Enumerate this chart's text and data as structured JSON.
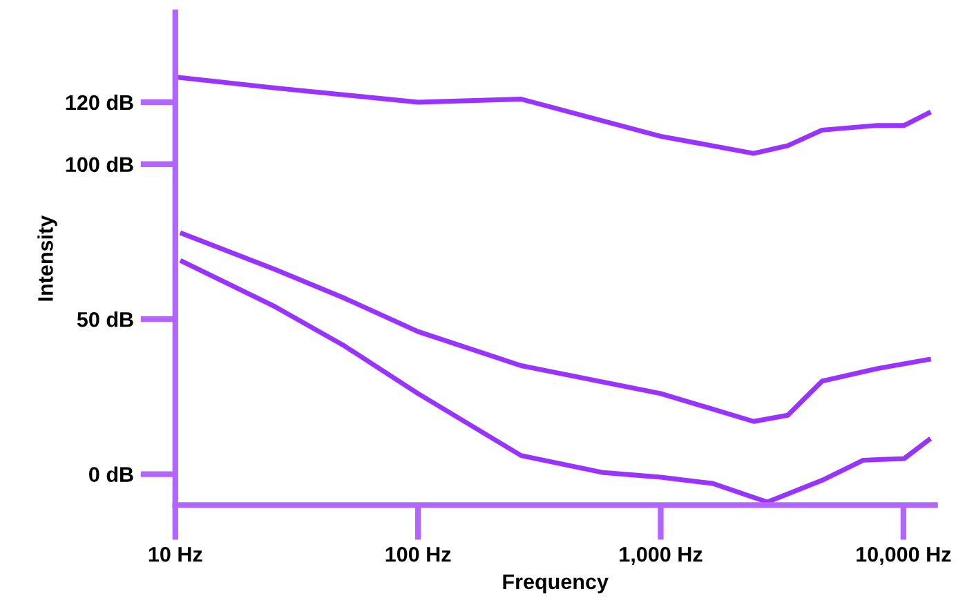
{
  "chart_data": {
    "type": "line",
    "xlabel": "Frequency",
    "ylabel": "Intensity",
    "log": "x",
    "grid": false,
    "legend": false,
    "marker": "none",
    "line_style": "solid",
    "xlim": [
      10,
      13500
    ],
    "ylim": [
      -10,
      149
    ],
    "xticks": [
      {
        "value": 10,
        "label": "10 Hz"
      },
      {
        "value": 100,
        "label": "100 Hz"
      },
      {
        "value": 1000,
        "label": "1,000 Hz"
      },
      {
        "value": 10000,
        "label": "10,000 Hz"
      }
    ],
    "yticks": [
      {
        "value": 0,
        "label": "0 dB"
      },
      {
        "value": 50,
        "label": "50 dB"
      },
      {
        "value": 100,
        "label": "100 dB"
      },
      {
        "value": 120,
        "label": "120 dB"
      }
    ],
    "series": [
      {
        "color": "#9933ff",
        "x": [
          10.4,
          25.8,
          100,
          266,
          1000,
          2415,
          3340,
          4620,
          7770,
          10070,
          12700
        ],
        "values": [
          128,
          124.6,
          120,
          121,
          109,
          103.5,
          106,
          111,
          112.5,
          112.5,
          116.5
        ]
      },
      {
        "color": "#9933ff",
        "x": [
          10.7,
          25.8,
          49,
          100,
          266,
          1000,
          2415,
          3340,
          4620,
          7770,
          12700
        ],
        "values": [
          77.6,
          66,
          57,
          46,
          35,
          26,
          17,
          19,
          30,
          34,
          37
        ]
      },
      {
        "color": "#9933ff",
        "x": [
          10.7,
          25.8,
          49,
          100,
          266,
          580,
          1000,
          1637,
          2750,
          4620,
          6830,
          10070,
          12700
        ],
        "values": [
          68.6,
          54,
          41.7,
          26,
          6,
          0.5,
          -1,
          -3,
          -9,
          -2,
          4.5,
          5,
          11
        ]
      }
    ]
  }
}
